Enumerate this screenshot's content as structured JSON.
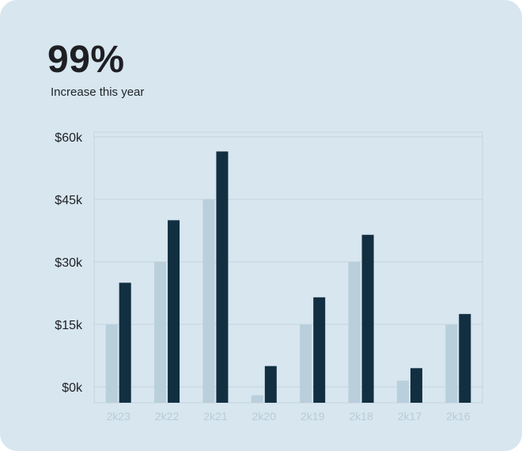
{
  "card": {
    "headline": "99%",
    "subheadline": "Increase this year"
  },
  "colors": {
    "background": "#d7e6ef",
    "grid": "#c4d4de",
    "series_light": "#bacfdc",
    "series_dark": "#112f41",
    "ytick": "#1e1f24",
    "xtick": "#b8ccd8"
  },
  "chart_data": {
    "type": "bar",
    "title": "",
    "xlabel": "",
    "ylabel": "",
    "categories": [
      "2k23",
      "2k22",
      "2k21",
      "2k20",
      "2k19",
      "2k18",
      "2k17",
      "2k16"
    ],
    "y_ticks": [
      "$0k",
      "$15k",
      "$30k",
      "$45k",
      "$60k"
    ],
    "y_tick_values": [
      0,
      15,
      30,
      45,
      60
    ],
    "ylim": [
      -4,
      62
    ],
    "grid": true,
    "series": [
      {
        "values": [
          15,
          30,
          45,
          -2,
          15,
          30,
          1.5,
          15
        ]
      },
      {
        "values": [
          25,
          40,
          56.5,
          5,
          21.5,
          36.5,
          4.5,
          17.5
        ]
      }
    ]
  }
}
